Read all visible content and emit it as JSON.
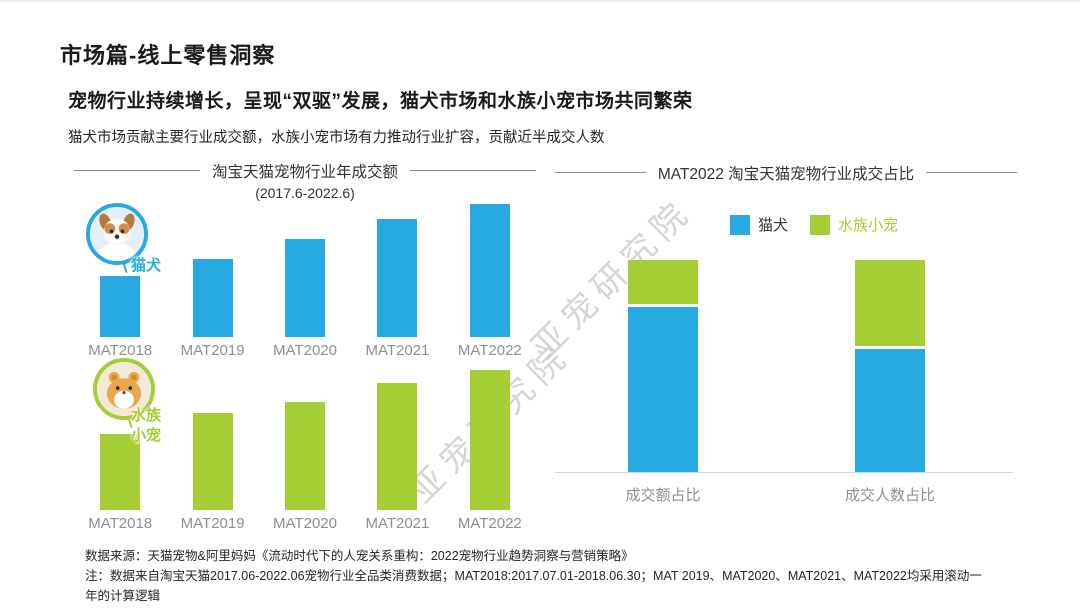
{
  "slide": {
    "kicker": "市场篇-线上零售洞察",
    "headline": "宠物行业持续增长，呈现“双驱”发展，猫犬市场和水族小宠市场共同繁荣",
    "subheadline": "猫犬市场贡献主要行业成交额，水族小宠市场有力推动行业扩容，贡献近半成交人数"
  },
  "watermark": {
    "text": "亚宠研究院"
  },
  "colors": {
    "blue": "#27AAE1",
    "green": "#A5CD34",
    "axis-label": "#8F8F8F",
    "watermark": "#C7C7C7"
  },
  "images": {
    "catdog_badge": "dog-photo",
    "aqua_badge": "hamster-photo"
  },
  "chart_data": [
    {
      "type": "bar",
      "title": "淘宝天猫宠物行业年成交额",
      "subtitle": "(2017.6-2022.6)",
      "categories": [
        "MAT2018",
        "MAT2019",
        "MAT2020",
        "MAT2021",
        "MAT2022"
      ],
      "series": [
        {
          "name": "猫犬",
          "color": "#27AAE1",
          "values": [
            46,
            59,
            74,
            89,
            100
          ],
          "label_lines": [
            "猫犬"
          ]
        },
        {
          "name": "水族小宠",
          "color": "#A5CD34",
          "values": [
            54,
            69,
            77,
            91,
            100
          ],
          "label_lines": [
            "水族",
            "小宠"
          ]
        }
      ],
      "ylabel": "",
      "xlabel": "",
      "grid": false,
      "value_note": "无数值轴刻度；数值为按柱高估算的相对指数（每组 MAT2022=100）",
      "layout": "两组分行展示的柱状图，组前带品类圆形照片标识"
    },
    {
      "type": "bar",
      "subtype": "stacked-100pct",
      "title": "MAT2022 淘宝天猫宠物行业成交占比",
      "categories": [
        "成交额占比",
        "成交人数占比"
      ],
      "series": [
        {
          "name": "猫犬",
          "color": "#27AAE1",
          "values": [
            78,
            58
          ]
        },
        {
          "name": "水族小宠",
          "color": "#A5CD34",
          "values": [
            22,
            42
          ]
        }
      ],
      "unit": "%",
      "ylim": [
        0,
        100
      ],
      "grid": false,
      "legend_position": "top",
      "value_note": "无数据标签，占比按柱段高度估算"
    }
  ],
  "footer": {
    "source": "数据来源：天猫宠物&阿里妈妈《流动时代下的人宠关系重构：2022宠物行业趋势洞察与营销策略》",
    "note": "注：数据来自淘宝天猫2017.06-2022.06宠物行业全品类消费数据；MAT2018:2017.07.01-2018.06.30；MAT 2019、MAT2020、MAT2021、MAT2022均采用滚动一年的计算逻辑"
  }
}
